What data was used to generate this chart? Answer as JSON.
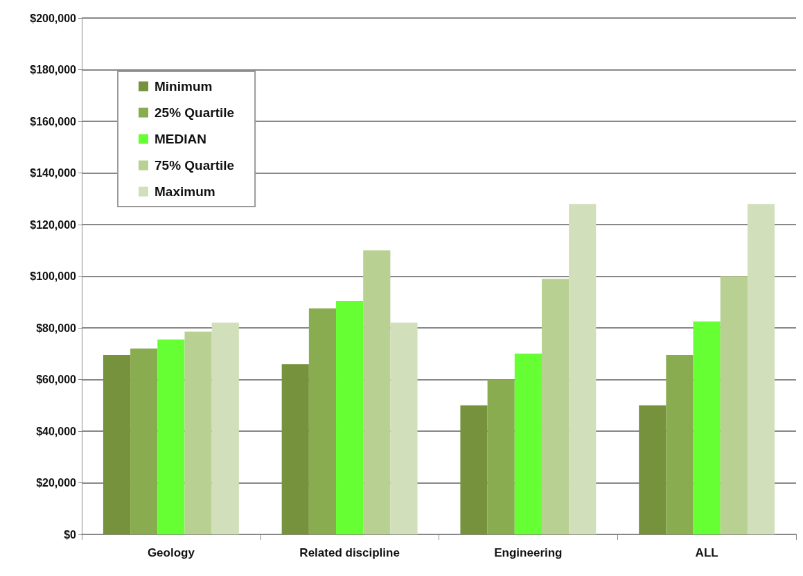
{
  "chart_data": {
    "type": "bar",
    "categories": [
      "Geology",
      "Related discipline",
      "Engineering",
      "ALL"
    ],
    "series": [
      {
        "name": "Minimum",
        "color": "#76923c",
        "values": [
          69500,
          66000,
          50000,
          50000
        ]
      },
      {
        "name": "25% Quartile",
        "color": "#8aac50",
        "values": [
          72000,
          87500,
          60000,
          69500
        ]
      },
      {
        "name": "MEDIAN",
        "color": "#66ff33",
        "values": [
          75500,
          90500,
          70000,
          82500
        ]
      },
      {
        "name": "75% Quartile",
        "color": "#b8d092",
        "values": [
          78500,
          110000,
          99000,
          100000
        ]
      },
      {
        "name": "Maximum",
        "color": "#d2dfbb",
        "values": [
          82000,
          82000,
          128000,
          128000
        ]
      }
    ],
    "ylim": [
      0,
      200000
    ],
    "yticks": [
      {
        "value": 0,
        "label": "$0"
      },
      {
        "value": 20000,
        "label": "$20,000"
      },
      {
        "value": 40000,
        "label": "$40,000"
      },
      {
        "value": 60000,
        "label": "$60,000"
      },
      {
        "value": 80000,
        "label": "$80,000"
      },
      {
        "value": 100000,
        "label": "$100,000"
      },
      {
        "value": 120000,
        "label": "$120,000"
      },
      {
        "value": 140000,
        "label": "$140,000"
      },
      {
        "value": 160000,
        "label": "$160,000"
      },
      {
        "value": 180000,
        "label": "$180,000"
      },
      {
        "value": 200000,
        "label": "$200,000"
      }
    ],
    "grid": "y",
    "legend": "top left"
  }
}
